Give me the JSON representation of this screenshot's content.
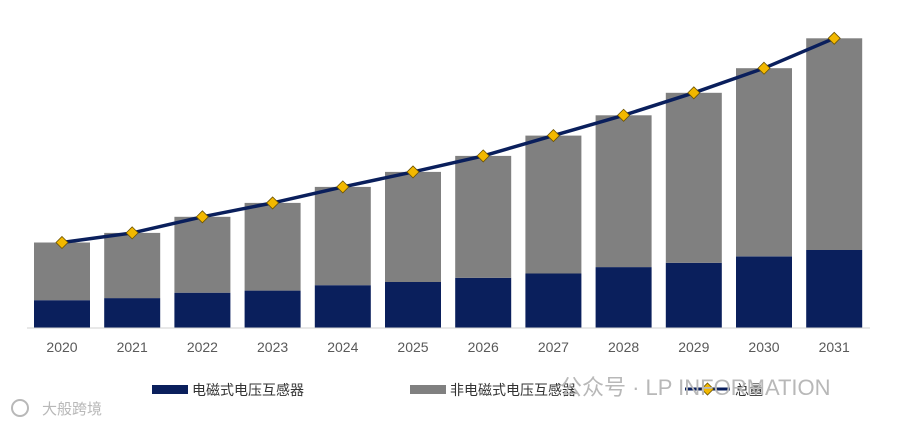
{
  "chart_data": {
    "type": "bar",
    "stacked": true,
    "title": "",
    "xlabel": "",
    "ylabel": "",
    "categories": [
      "2020",
      "2021",
      "2022",
      "2023",
      "2024",
      "2025",
      "2026",
      "2027",
      "2028",
      "2029",
      "2030",
      "2031"
    ],
    "series": [
      {
        "name": "电磁式电压互感器",
        "color": "#0a1f5c",
        "values": [
          26,
          28,
          33,
          35,
          40,
          43,
          47,
          51,
          57,
          61,
          67,
          73
        ]
      },
      {
        "name": "非电磁式电压互感器",
        "color": "#808080",
        "values": [
          54,
          61,
          71,
          82,
          92,
          103,
          114,
          129,
          142,
          159,
          176,
          198
        ]
      }
    ],
    "line": {
      "name": "总量",
      "color": "#0a1f5c",
      "marker_color": "#f2b800",
      "values": [
        80,
        89,
        104,
        117,
        132,
        146,
        161,
        180,
        199,
        220,
        243,
        271
      ]
    },
    "ylim": [
      0,
      290
    ],
    "grid": false,
    "legend_position": "bottom"
  },
  "watermark": {
    "main": "公众号 · LP INFORMATION",
    "corner": "大般跨境"
  }
}
